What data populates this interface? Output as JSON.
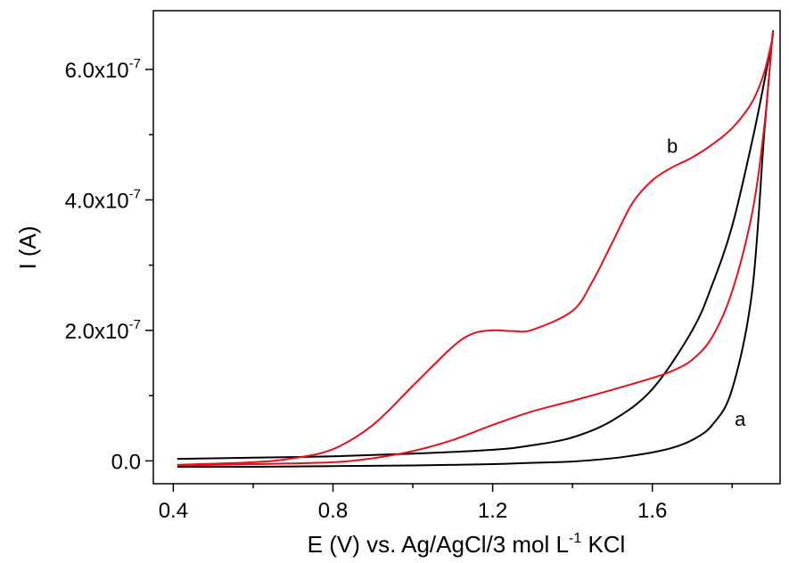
{
  "chart_data": {
    "type": "line",
    "title": "",
    "xlabel": {
      "main": "E (V) vs. Ag/AgCl/3 mol L",
      "superscript": "-1",
      "suffix": " KCl"
    },
    "ylabel": "I (A)",
    "xlim": [
      0.35,
      1.92
    ],
    "ylim": [
      -3.5e-08,
      6.9e-07
    ],
    "xticks": [
      {
        "value": 0.4,
        "label": "0.4"
      },
      {
        "value": 0.8,
        "label": "0.8"
      },
      {
        "value": 1.2,
        "label": "1.2"
      },
      {
        "value": 1.6,
        "label": "1.6"
      }
    ],
    "yticks": [
      {
        "value": 0,
        "mantissa": "0.0",
        "exponent": ""
      },
      {
        "value": 2e-07,
        "mantissa": "2.0x10",
        "exponent": "-7"
      },
      {
        "value": 4e-07,
        "mantissa": "4.0x10",
        "exponent": "-7"
      },
      {
        "value": 6e-07,
        "mantissa": "6.0x10",
        "exponent": "-7"
      }
    ],
    "grid": false,
    "legend": "none",
    "series": [
      {
        "name": "a",
        "color": "#000000",
        "label_at": [
          1.82,
          5.4e-08
        ],
        "x": [
          0.41,
          0.6,
          0.8,
          1.0,
          1.2,
          1.3,
          1.4,
          1.5,
          1.6,
          1.7,
          1.75,
          1.8,
          1.85,
          1.88,
          1.9,
          1.9,
          1.88,
          1.85,
          1.8,
          1.75,
          1.7,
          1.65,
          1.6,
          1.55,
          1.5,
          1.4,
          1.3,
          1.2,
          1.0,
          0.8,
          0.6,
          0.41
        ],
        "y": [
          3e-09,
          5e-09,
          7e-09,
          1.1e-08,
          1.7e-08,
          2.4e-08,
          3.6e-08,
          6.2e-08,
          1.1e-07,
          2e-07,
          2.7e-07,
          3.6e-07,
          4.9e-07,
          5.8e-07,
          6.45e-07,
          6.45e-07,
          5e-07,
          2.6e-07,
          1.1e-07,
          5.5e-08,
          3.2e-08,
          2e-08,
          1.3e-08,
          8e-09,
          4e-09,
          -1e-09,
          -3e-09,
          -5e-09,
          -7e-09,
          -8e-09,
          -9e-09,
          -9e-09
        ]
      },
      {
        "name": "b",
        "color": "#e8101c",
        "label_at": [
          1.65,
          4.72e-07
        ],
        "x": [
          0.41,
          0.6,
          0.7,
          0.8,
          0.9,
          1.0,
          1.1,
          1.15,
          1.2,
          1.25,
          1.3,
          1.4,
          1.45,
          1.5,
          1.55,
          1.6,
          1.65,
          1.7,
          1.75,
          1.8,
          1.85,
          1.88,
          1.9,
          1.9,
          1.88,
          1.85,
          1.8,
          1.75,
          1.7,
          1.65,
          1.6,
          1.5,
          1.4,
          1.3,
          1.2,
          1.1,
          1.0,
          0.9,
          0.8,
          0.6,
          0.41
        ],
        "y": [
          -6e-09,
          -2e-09,
          4e-09,
          1.8e-08,
          5.5e-08,
          1.15e-07,
          1.75e-07,
          1.95e-07,
          2e-07,
          1.99e-07,
          2.01e-07,
          2.3e-07,
          2.75e-07,
          3.35e-07,
          3.95e-07,
          4.3e-07,
          4.5e-07,
          4.65e-07,
          4.85e-07,
          5.1e-07,
          5.5e-07,
          5.95e-07,
          6.45e-07,
          6.45e-07,
          5.1e-07,
          3.8e-07,
          2.6e-07,
          1.9e-07,
          1.55e-07,
          1.38e-07,
          1.27e-07,
          1.09e-07,
          9.2e-08,
          7.6e-08,
          5.5e-08,
          3.2e-08,
          1.5e-08,
          4e-09,
          -2e-09,
          -5e-09,
          -7e-09
        ]
      }
    ]
  }
}
